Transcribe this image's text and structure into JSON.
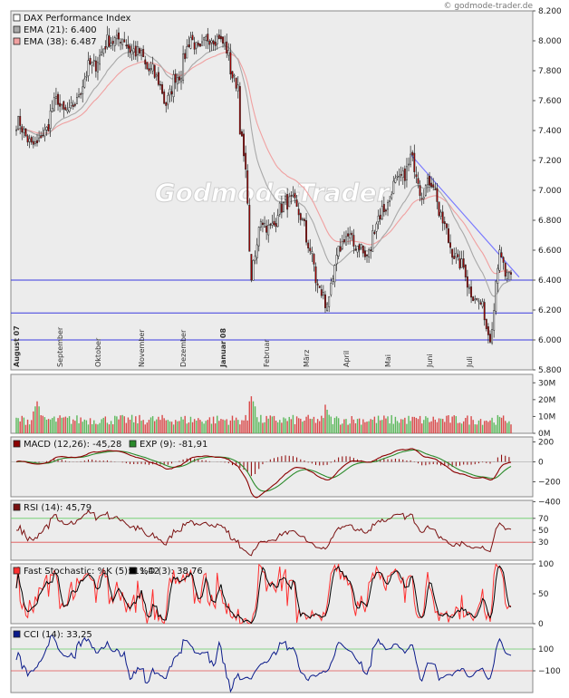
{
  "credit": "© godmode-trader.de",
  "watermark": "Godmode-Trader",
  "colors": {
    "panel_bg": "#ececec",
    "up": "#ffffff",
    "down": "#b00000",
    "ema21": "#a8a8a8",
    "ema38": "#f0a0a0",
    "support": "#3a3adf",
    "trend": "#7a7aff",
    "macd": "#8b0000",
    "signal": "#2a8a2a",
    "rsi": "#7a1010",
    "stoch_k": "#ff3030",
    "stoch_d": "#000000",
    "cci": "#0a1a8a",
    "vol_up": "#5cb85c",
    "vol_down": "#d94a4a"
  },
  "chart_data": [
    {
      "type": "candlestick",
      "title": "DAX Performance Index",
      "legend": [
        {
          "label": "DAX Performance Index",
          "swatch": "#ffffff"
        },
        {
          "label": "EMA (21): 6.400",
          "swatch": "#a8a8a8"
        },
        {
          "label": "EMA (38): 6.487",
          "swatch": "#f0a0a0"
        }
      ],
      "ylim": [
        5800,
        8200
      ],
      "yticks": [
        "5.800",
        "6.000",
        "6.200",
        "6.400",
        "6.600",
        "6.800",
        "7.000",
        "7.200",
        "7.400",
        "7.600",
        "7.800",
        "8.000",
        "8.200"
      ],
      "x_months": [
        "August 07",
        "September",
        "Oktober",
        "November",
        "Dezember",
        "Januar 08",
        "Februar",
        "März",
        "April",
        "Mai",
        "Juni",
        "Juli"
      ],
      "anchors": [
        {
          "d": "2007-08-01",
          "c": 7450
        },
        {
          "d": "2007-08-16",
          "c": 7280
        },
        {
          "d": "2007-08-31",
          "c": 7600
        },
        {
          "d": "2007-09-10",
          "c": 7500
        },
        {
          "d": "2007-09-20",
          "c": 7750
        },
        {
          "d": "2007-10-01",
          "c": 7900
        },
        {
          "d": "2007-10-12",
          "c": 8030
        },
        {
          "d": "2007-10-26",
          "c": 7950
        },
        {
          "d": "2007-11-09",
          "c": 7800
        },
        {
          "d": "2007-11-20",
          "c": 7600
        },
        {
          "d": "2007-11-29",
          "c": 7780
        },
        {
          "d": "2007-12-07",
          "c": 8000
        },
        {
          "d": "2007-12-14",
          "c": 7950
        },
        {
          "d": "2007-12-28",
          "c": 8050
        },
        {
          "d": "2008-01-04",
          "c": 7900
        },
        {
          "d": "2008-01-11",
          "c": 7700
        },
        {
          "d": "2008-01-17",
          "c": 7100
        },
        {
          "d": "2008-01-22",
          "c": 6450
        },
        {
          "d": "2008-01-29",
          "c": 6800
        },
        {
          "d": "2008-02-07",
          "c": 6750
        },
        {
          "d": "2008-02-15",
          "c": 6950
        },
        {
          "d": "2008-02-27",
          "c": 6850
        },
        {
          "d": "2008-03-07",
          "c": 6500
        },
        {
          "d": "2008-03-17",
          "c": 6200
        },
        {
          "d": "2008-03-26",
          "c": 6600
        },
        {
          "d": "2008-04-03",
          "c": 6700
        },
        {
          "d": "2008-04-15",
          "c": 6550
        },
        {
          "d": "2008-04-24",
          "c": 6800
        },
        {
          "d": "2008-05-05",
          "c": 7000
        },
        {
          "d": "2008-05-19",
          "c": 7200
        },
        {
          "d": "2008-05-27",
          "c": 7000
        },
        {
          "d": "2008-06-04",
          "c": 7050
        },
        {
          "d": "2008-06-13",
          "c": 6700
        },
        {
          "d": "2008-06-24",
          "c": 6500
        },
        {
          "d": "2008-07-04",
          "c": 6300
        },
        {
          "d": "2008-07-10",
          "c": 6200
        },
        {
          "d": "2008-07-16",
          "c": 6050
        },
        {
          "d": "2008-07-23",
          "c": 6550
        },
        {
          "d": "2008-07-31",
          "c": 6400
        }
      ],
      "support_levels": [
        6400,
        6180,
        6000
      ],
      "trendline": [
        {
          "d": "2008-05-19",
          "v": 7240
        },
        {
          "d": "2008-08-06",
          "v": 6420
        }
      ]
    },
    {
      "type": "bar",
      "name": "volume",
      "ylim": [
        0,
        35
      ],
      "yticks": [
        "0M",
        "10M",
        "20M",
        "30M"
      ],
      "base": 8,
      "spikes": [
        {
          "d": "2008-01-22",
          "v": 22
        },
        {
          "d": "2007-08-16",
          "v": 19
        },
        {
          "d": "2008-03-17",
          "v": 17
        }
      ]
    },
    {
      "type": "line",
      "name": "MACD",
      "legend": [
        {
          "label": "MACD (12,26): -45,28",
          "swatch": "#8b0000"
        },
        {
          "label": "EXP (9): -81,91",
          "swatch": "#2a8a2a"
        }
      ],
      "ylim": [
        -350,
        250
      ],
      "yticks": [
        "200",
        "0",
        "−200",
        "−400"
      ]
    },
    {
      "type": "line",
      "name": "RSI",
      "legend": [
        {
          "label": "RSI (14): 45,79",
          "swatch": "#7a1010"
        }
      ],
      "ylim": [
        0,
        100
      ],
      "yticks": [
        "70",
        "50",
        "30"
      ],
      "bands": [
        70,
        30
      ]
    },
    {
      "type": "line",
      "name": "Fast Stochastic",
      "legend": [
        {
          "label": "Fast Stochastic: %K (5): 11,42",
          "swatch": "#ff3030"
        },
        {
          "label": "%D (3): 38,76",
          "swatch": "#000000"
        }
      ],
      "ylim": [
        0,
        100
      ],
      "yticks": [
        "100",
        "50",
        "0"
      ]
    },
    {
      "type": "line",
      "name": "CCI",
      "legend": [
        {
          "label": "CCI (14): 33,25",
          "swatch": "#0a1a8a"
        }
      ],
      "ylim": [
        -300,
        300
      ],
      "yticks": [
        "100",
        "−100"
      ],
      "bands": [
        100,
        -100
      ]
    }
  ]
}
